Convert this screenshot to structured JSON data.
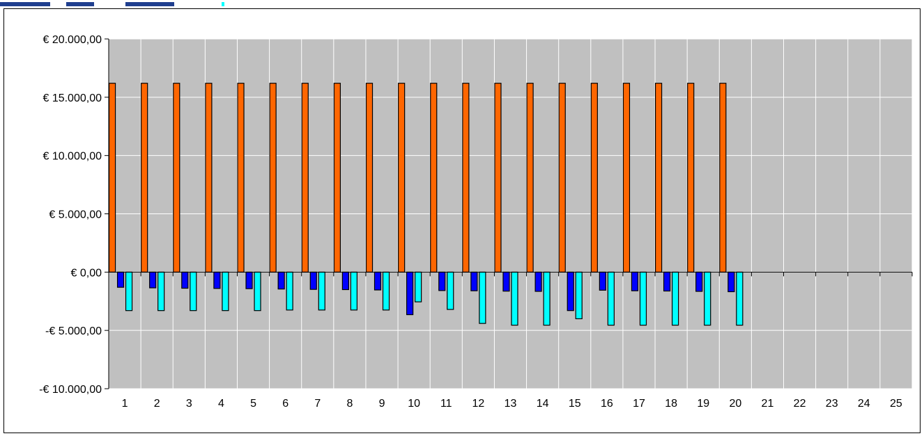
{
  "chart_data": {
    "type": "bar",
    "title": "",
    "xlabel": "",
    "ylabel": "",
    "ylim": [
      -10000,
      20000
    ],
    "y_ticks": [
      -10000,
      -5000,
      0,
      5000,
      10000,
      15000,
      20000
    ],
    "y_tick_labels": [
      "-€ 10.000,00",
      "-€ 5.000,00",
      "€ 0,00",
      "€ 5.000,00",
      "€ 10.000,00",
      "€ 15.000,00",
      "€ 20.000,00"
    ],
    "categories": [
      "1",
      "2",
      "3",
      "4",
      "5",
      "6",
      "7",
      "8",
      "9",
      "10",
      "11",
      "12",
      "13",
      "14",
      "15",
      "16",
      "17",
      "18",
      "19",
      "20",
      "21",
      "22",
      "23",
      "24",
      "25"
    ],
    "grid": true,
    "plot_background": "#c0c0c0",
    "series": [
      {
        "color": "#ff6600",
        "values": [
          16200,
          16200,
          16200,
          16200,
          16200,
          16200,
          16200,
          16200,
          16200,
          16200,
          16200,
          16200,
          16200,
          16200,
          16200,
          16200,
          16200,
          16200,
          16200,
          16200,
          null,
          null,
          null,
          null,
          null
        ]
      },
      {
        "color": "#0000ff",
        "values": [
          -1300,
          -1350,
          -1380,
          -1400,
          -1420,
          -1450,
          -1480,
          -1500,
          -1530,
          -3650,
          -1580,
          -1600,
          -1630,
          -1650,
          -3300,
          -1550,
          -1600,
          -1620,
          -1650,
          -1680,
          null,
          null,
          null,
          null,
          null
        ]
      },
      {
        "color": "#00ffff",
        "values": [
          -3300,
          -3300,
          -3300,
          -3300,
          -3300,
          -3250,
          -3250,
          -3250,
          -3250,
          -2550,
          -3200,
          -4400,
          -4550,
          -4550,
          -4000,
          -4550,
          -4550,
          -4550,
          -4550,
          -4550,
          null,
          null,
          null,
          null,
          null
        ]
      }
    ]
  },
  "top_strip_colors": [
    "#1f3f8f",
    "#00ffff"
  ]
}
